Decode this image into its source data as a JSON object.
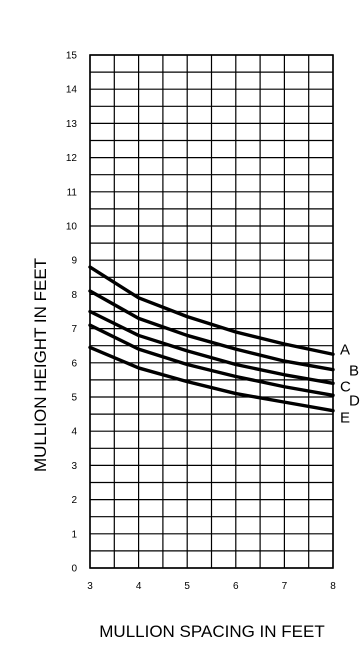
{
  "chart_data": {
    "type": "line",
    "xlabel": "MULLION SPACING IN FEET",
    "ylabel": "MULLION HEIGHT IN FEET",
    "xlim": [
      3,
      8
    ],
    "ylim": [
      0,
      15
    ],
    "x_ticks": [
      "3",
      "4",
      "5",
      "6",
      "7",
      "8"
    ],
    "y_ticks": [
      "0",
      "1",
      "2",
      "3",
      "4",
      "5",
      "6",
      "7",
      "8",
      "9",
      "10",
      "11",
      "12",
      "13",
      "14",
      "15"
    ],
    "grid": true,
    "legend": "right-end-labels",
    "series": [
      {
        "name": "A",
        "x": [
          3,
          4,
          5,
          6,
          7,
          8
        ],
        "y": [
          8.8,
          7.9,
          7.35,
          6.9,
          6.55,
          6.25
        ]
      },
      {
        "name": "B",
        "x": [
          3,
          4,
          5,
          6,
          7,
          8
        ],
        "y": [
          8.1,
          7.3,
          6.8,
          6.4,
          6.05,
          5.8
        ]
      },
      {
        "name": "C",
        "x": [
          3,
          4,
          5,
          6,
          7,
          8
        ],
        "y": [
          7.5,
          6.8,
          6.35,
          5.95,
          5.65,
          5.4
        ]
      },
      {
        "name": "D",
        "x": [
          3,
          4,
          5,
          6,
          7,
          8
        ],
        "y": [
          7.1,
          6.4,
          5.95,
          5.6,
          5.3,
          5.05
        ]
      },
      {
        "name": "E",
        "x": [
          3,
          4,
          5,
          6,
          7,
          8
        ],
        "y": [
          6.45,
          5.85,
          5.45,
          5.1,
          4.85,
          4.6
        ]
      }
    ]
  }
}
